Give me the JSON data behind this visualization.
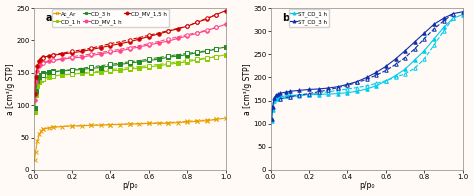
{
  "panel_a": {
    "label": "a",
    "xlabel": "p/p₀",
    "ylabel": "a [cm³/g STP]",
    "ylim": [
      0,
      250
    ],
    "xlim": [
      0,
      1.0
    ],
    "yticks": [
      0,
      50,
      100,
      150,
      200,
      250
    ],
    "xticks": [
      0,
      0.2,
      0.4,
      0.6,
      0.8,
      1.0
    ],
    "bg_color": "#FFFAF5",
    "series": [
      {
        "name": "Ac_Ar",
        "color": "#E8A000",
        "marker": "x",
        "lw": 0.8,
        "adsorption": [
          [
            0.005,
            15
          ],
          [
            0.01,
            28
          ],
          [
            0.02,
            45
          ],
          [
            0.03,
            55
          ],
          [
            0.04,
            60
          ],
          [
            0.05,
            63
          ],
          [
            0.08,
            65
          ],
          [
            0.1,
            66
          ],
          [
            0.15,
            67
          ],
          [
            0.2,
            68
          ],
          [
            0.25,
            68
          ],
          [
            0.3,
            69
          ],
          [
            0.35,
            69
          ],
          [
            0.4,
            70
          ],
          [
            0.45,
            70
          ],
          [
            0.5,
            71
          ],
          [
            0.55,
            71
          ],
          [
            0.6,
            72
          ],
          [
            0.65,
            72
          ],
          [
            0.7,
            72
          ],
          [
            0.75,
            73
          ],
          [
            0.8,
            74
          ],
          [
            0.85,
            75
          ],
          [
            0.9,
            76
          ],
          [
            0.95,
            78
          ],
          [
            1.0,
            80
          ]
        ],
        "desorption": [
          [
            0.95,
            78
          ],
          [
            0.9,
            77
          ],
          [
            0.85,
            76
          ],
          [
            0.8,
            75
          ],
          [
            0.7,
            73
          ],
          [
            0.6,
            72
          ],
          [
            0.5,
            71
          ],
          [
            0.4,
            70
          ],
          [
            0.3,
            69
          ],
          [
            0.2,
            68
          ],
          [
            0.1,
            66
          ],
          [
            0.05,
            63
          ]
        ]
      },
      {
        "name": "CD_1 h",
        "color": "#88CC00",
        "marker": "s",
        "lw": 0.8,
        "adsorption": [
          [
            0.005,
            90
          ],
          [
            0.01,
            115
          ],
          [
            0.02,
            130
          ],
          [
            0.03,
            136
          ],
          [
            0.04,
            139
          ],
          [
            0.05,
            141
          ],
          [
            0.08,
            144
          ],
          [
            0.1,
            145
          ],
          [
            0.15,
            147
          ],
          [
            0.2,
            148
          ],
          [
            0.25,
            149
          ],
          [
            0.3,
            150
          ],
          [
            0.35,
            151
          ],
          [
            0.4,
            153
          ],
          [
            0.45,
            154
          ],
          [
            0.5,
            156
          ],
          [
            0.55,
            157
          ],
          [
            0.6,
            159
          ],
          [
            0.65,
            161
          ],
          [
            0.7,
            163
          ],
          [
            0.75,
            165
          ],
          [
            0.8,
            167
          ],
          [
            0.85,
            170
          ],
          [
            0.9,
            172
          ],
          [
            0.95,
            175
          ],
          [
            1.0,
            178
          ]
        ],
        "desorption": [
          [
            0.95,
            175
          ],
          [
            0.9,
            173
          ],
          [
            0.85,
            171
          ],
          [
            0.8,
            169
          ],
          [
            0.7,
            165
          ],
          [
            0.6,
            161
          ],
          [
            0.5,
            158
          ],
          [
            0.4,
            155
          ],
          [
            0.3,
            151
          ],
          [
            0.2,
            148
          ],
          [
            0.1,
            145
          ],
          [
            0.05,
            141
          ]
        ]
      },
      {
        "name": "CD_3 h",
        "color": "#228B22",
        "marker": "s",
        "lw": 0.8,
        "adsorption": [
          [
            0.005,
            96
          ],
          [
            0.01,
            122
          ],
          [
            0.02,
            137
          ],
          [
            0.03,
            143
          ],
          [
            0.04,
            147
          ],
          [
            0.05,
            149
          ],
          [
            0.08,
            151
          ],
          [
            0.1,
            152
          ],
          [
            0.15,
            153
          ],
          [
            0.2,
            154
          ],
          [
            0.25,
            155
          ],
          [
            0.3,
            157
          ],
          [
            0.35,
            158
          ],
          [
            0.4,
            161
          ],
          [
            0.45,
            163
          ],
          [
            0.5,
            165
          ],
          [
            0.55,
            167
          ],
          [
            0.6,
            169
          ],
          [
            0.65,
            171
          ],
          [
            0.7,
            174
          ],
          [
            0.75,
            176
          ],
          [
            0.8,
            178
          ],
          [
            0.85,
            181
          ],
          [
            0.9,
            183
          ],
          [
            0.95,
            187
          ],
          [
            1.0,
            190
          ]
        ],
        "desorption": [
          [
            0.95,
            187
          ],
          [
            0.9,
            184
          ],
          [
            0.85,
            182
          ],
          [
            0.8,
            180
          ],
          [
            0.7,
            176
          ],
          [
            0.6,
            171
          ],
          [
            0.5,
            167
          ],
          [
            0.4,
            163
          ],
          [
            0.3,
            159
          ],
          [
            0.2,
            155
          ],
          [
            0.1,
            151
          ],
          [
            0.05,
            147
          ]
        ]
      },
      {
        "name": "CD_MV_1 h",
        "color": "#FF4488",
        "marker": "o",
        "lw": 0.8,
        "adsorption": [
          [
            0.005,
            108
          ],
          [
            0.01,
            135
          ],
          [
            0.02,
            153
          ],
          [
            0.03,
            160
          ],
          [
            0.04,
            164
          ],
          [
            0.05,
            166
          ],
          [
            0.08,
            168
          ],
          [
            0.1,
            169
          ],
          [
            0.15,
            171
          ],
          [
            0.2,
            173
          ],
          [
            0.25,
            174
          ],
          [
            0.3,
            177
          ],
          [
            0.35,
            179
          ],
          [
            0.4,
            182
          ],
          [
            0.45,
            184
          ],
          [
            0.5,
            187
          ],
          [
            0.55,
            190
          ],
          [
            0.6,
            193
          ],
          [
            0.65,
            196
          ],
          [
            0.7,
            199
          ],
          [
            0.75,
            203
          ],
          [
            0.8,
            207
          ],
          [
            0.85,
            211
          ],
          [
            0.9,
            215
          ],
          [
            0.95,
            220
          ],
          [
            1.0,
            225
          ]
        ],
        "desorption": [
          [
            0.95,
            220
          ],
          [
            0.9,
            216
          ],
          [
            0.85,
            212
          ],
          [
            0.8,
            209
          ],
          [
            0.7,
            202
          ],
          [
            0.6,
            195
          ],
          [
            0.5,
            189
          ],
          [
            0.4,
            184
          ],
          [
            0.3,
            179
          ],
          [
            0.2,
            175
          ],
          [
            0.1,
            169
          ],
          [
            0.05,
            165
          ]
        ]
      },
      {
        "name": "CD_MV_1,5 h",
        "color": "#CC0000",
        "marker": "o",
        "lw": 0.8,
        "adsorption": [
          [
            0.005,
            117
          ],
          [
            0.01,
            143
          ],
          [
            0.02,
            161
          ],
          [
            0.03,
            168
          ],
          [
            0.04,
            172
          ],
          [
            0.05,
            174
          ],
          [
            0.08,
            176
          ],
          [
            0.1,
            177
          ],
          [
            0.15,
            179
          ],
          [
            0.2,
            181
          ],
          [
            0.25,
            183
          ],
          [
            0.3,
            186
          ],
          [
            0.35,
            189
          ],
          [
            0.4,
            192
          ],
          [
            0.45,
            195
          ],
          [
            0.5,
            198
          ],
          [
            0.55,
            202
          ],
          [
            0.6,
            206
          ],
          [
            0.65,
            210
          ],
          [
            0.7,
            214
          ],
          [
            0.75,
            218
          ],
          [
            0.8,
            222
          ],
          [
            0.85,
            228
          ],
          [
            0.9,
            233
          ],
          [
            0.95,
            240
          ],
          [
            1.0,
            246
          ]
        ],
        "desorption": [
          [
            0.95,
            240
          ],
          [
            0.9,
            234
          ],
          [
            0.85,
            228
          ],
          [
            0.8,
            222
          ],
          [
            0.7,
            215
          ],
          [
            0.6,
            208
          ],
          [
            0.5,
            201
          ],
          [
            0.4,
            195
          ],
          [
            0.3,
            188
          ],
          [
            0.2,
            183
          ],
          [
            0.1,
            178
          ],
          [
            0.05,
            173
          ]
        ]
      }
    ]
  },
  "panel_b": {
    "label": "b",
    "xlabel": "p/p₀",
    "ylabel": "a [cm³/g STP]",
    "ylim": [
      0,
      350
    ],
    "xlim": [
      0,
      1.0
    ],
    "yticks": [
      0,
      50,
      100,
      150,
      200,
      250,
      300,
      350
    ],
    "xticks": [
      0,
      0.2,
      0.4,
      0.6,
      0.8,
      1.0
    ],
    "bg_color": "#FFFAF5",
    "series": [
      {
        "name": "ST_CD_1 h",
        "color": "#00CCEE",
        "marker": "^",
        "lw": 0.8,
        "adsorption": [
          [
            0.005,
            105
          ],
          [
            0.01,
            130
          ],
          [
            0.02,
            148
          ],
          [
            0.03,
            153
          ],
          [
            0.04,
            156
          ],
          [
            0.05,
            158
          ],
          [
            0.08,
            160
          ],
          [
            0.1,
            161
          ],
          [
            0.15,
            162
          ],
          [
            0.2,
            163
          ],
          [
            0.25,
            163
          ],
          [
            0.3,
            164
          ],
          [
            0.35,
            165
          ],
          [
            0.4,
            167
          ],
          [
            0.45,
            170
          ],
          [
            0.5,
            175
          ],
          [
            0.55,
            182
          ],
          [
            0.6,
            192
          ],
          [
            0.65,
            204
          ],
          [
            0.7,
            218
          ],
          [
            0.75,
            238
          ],
          [
            0.8,
            258
          ],
          [
            0.85,
            283
          ],
          [
            0.9,
            308
          ],
          [
            0.95,
            328
          ],
          [
            1.0,
            336
          ]
        ],
        "desorption": [
          [
            0.95,
            328
          ],
          [
            0.9,
            300
          ],
          [
            0.85,
            270
          ],
          [
            0.8,
            240
          ],
          [
            0.75,
            220
          ],
          [
            0.7,
            208
          ],
          [
            0.65,
            200
          ],
          [
            0.6,
            193
          ],
          [
            0.55,
            187
          ],
          [
            0.5,
            182
          ],
          [
            0.45,
            178
          ],
          [
            0.4,
            175
          ],
          [
            0.35,
            172
          ],
          [
            0.3,
            169
          ],
          [
            0.25,
            166
          ],
          [
            0.2,
            163
          ],
          [
            0.15,
            160
          ],
          [
            0.1,
            157
          ],
          [
            0.05,
            153
          ]
        ]
      },
      {
        "name": "ST_CD_3 h",
        "color": "#1030AA",
        "marker": "^",
        "lw": 0.8,
        "adsorption": [
          [
            0.005,
            110
          ],
          [
            0.01,
            137
          ],
          [
            0.02,
            155
          ],
          [
            0.03,
            161
          ],
          [
            0.04,
            164
          ],
          [
            0.05,
            166
          ],
          [
            0.08,
            168
          ],
          [
            0.1,
            170
          ],
          [
            0.15,
            172
          ],
          [
            0.2,
            174
          ],
          [
            0.25,
            175
          ],
          [
            0.3,
            177
          ],
          [
            0.35,
            180
          ],
          [
            0.4,
            185
          ],
          [
            0.45,
            191
          ],
          [
            0.5,
            200
          ],
          [
            0.55,
            211
          ],
          [
            0.6,
            224
          ],
          [
            0.65,
            240
          ],
          [
            0.7,
            258
          ],
          [
            0.75,
            277
          ],
          [
            0.8,
            296
          ],
          [
            0.85,
            315
          ],
          [
            0.9,
            328
          ],
          [
            0.95,
            338
          ],
          [
            1.0,
            342
          ]
        ],
        "desorption": [
          [
            0.95,
            338
          ],
          [
            0.9,
            322
          ],
          [
            0.85,
            305
          ],
          [
            0.8,
            284
          ],
          [
            0.75,
            262
          ],
          [
            0.7,
            243
          ],
          [
            0.65,
            228
          ],
          [
            0.6,
            215
          ],
          [
            0.55,
            205
          ],
          [
            0.5,
            196
          ],
          [
            0.45,
            189
          ],
          [
            0.4,
            183
          ],
          [
            0.35,
            178
          ],
          [
            0.3,
            173
          ],
          [
            0.25,
            169
          ],
          [
            0.2,
            165
          ],
          [
            0.15,
            162
          ],
          [
            0.1,
            158
          ],
          [
            0.05,
            154
          ]
        ]
      }
    ]
  }
}
